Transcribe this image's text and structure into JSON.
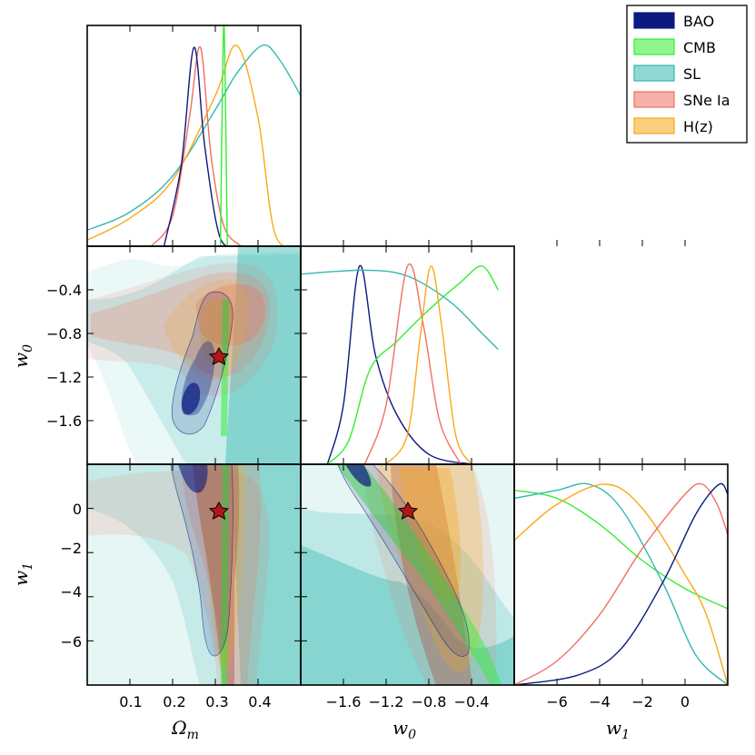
{
  "chart_data": {
    "type": "corner",
    "parameters": [
      {
        "label": "Ω",
        "subscript": "m",
        "range": [
          0.0,
          0.5
        ],
        "ticks": [
          "0.1",
          "0.2",
          "0.3",
          "0.4"
        ],
        "tick_values": [
          0.1,
          0.2,
          0.3,
          0.4
        ]
      },
      {
        "label": "w",
        "subscript": "0",
        "range": [
          -2.0,
          -0.0
        ],
        "ticks": [
          "−1.6",
          "−1.2",
          "−0.8",
          "−0.4"
        ],
        "tick_values": [
          -1.6,
          -1.2,
          -0.8,
          -0.4
        ]
      },
      {
        "label": "w",
        "subscript": "1",
        "range": [
          -8.0,
          2.0
        ],
        "ticks": [
          "−6",
          "−4",
          "−2",
          "0"
        ],
        "tick_values": [
          -6,
          -4,
          -2,
          0
        ]
      }
    ],
    "y_ticks_w0": [
      "−0.4",
      "−0.8",
      "−1.2",
      "−1.6"
    ],
    "y_ticks_w1": [
      "0",
      "−2",
      "−4",
      "−6"
    ],
    "fiducial": {
      "Omega_m": 0.31,
      "w0": -1.0,
      "w1": 0.0
    },
    "legend": [
      {
        "name": "BAO",
        "color": "#0a1a80"
      },
      {
        "name": "CMB",
        "color": "#33ee33"
      },
      {
        "name": "SL",
        "color": "#33b8b0"
      },
      {
        "name": "SNe Ia",
        "color": "#f07060"
      },
      {
        "name": "H(z)",
        "color": "#f8a818"
      }
    ],
    "marginals": {
      "Omega_m": [
        {
          "series": "SL",
          "peak_at": 0.41,
          "profile": "broad_skew_left",
          "values": [
            [
              0.0,
              0.08
            ],
            [
              0.1,
              0.17
            ],
            [
              0.2,
              0.35
            ],
            [
              0.3,
              0.68
            ],
            [
              0.35,
              0.86
            ],
            [
              0.41,
              1.0
            ],
            [
              0.45,
              0.93
            ],
            [
              0.5,
              0.75
            ]
          ]
        },
        {
          "series": "H(z)",
          "peak_at": 0.35,
          "values": [
            [
              0.0,
              0.03
            ],
            [
              0.1,
              0.14
            ],
            [
              0.2,
              0.33
            ],
            [
              0.3,
              0.75
            ],
            [
              0.35,
              1.0
            ],
            [
              0.4,
              0.64
            ],
            [
              0.44,
              0.06
            ],
            [
              0.5,
              0.0
            ]
          ]
        },
        {
          "series": "SNe Ia",
          "peak_at": 0.265,
          "values": [
            [
              0.15,
              0.0
            ],
            [
              0.2,
              0.15
            ],
            [
              0.24,
              0.65
            ],
            [
              0.265,
              0.99
            ],
            [
              0.29,
              0.45
            ],
            [
              0.32,
              0.1
            ],
            [
              0.36,
              0.0
            ]
          ]
        },
        {
          "series": "BAO",
          "peak_at": 0.25,
          "values": [
            [
              0.18,
              0.0
            ],
            [
              0.22,
              0.4
            ],
            [
              0.25,
              0.99
            ],
            [
              0.275,
              0.5
            ],
            [
              0.31,
              0.05
            ],
            [
              0.35,
              0.0
            ]
          ]
        },
        {
          "series": "CMB",
          "peak_at": 0.32,
          "values": [
            [
              0.312,
              0.0
            ],
            [
              0.318,
              0.98
            ],
            [
              0.322,
              0.98
            ],
            [
              0.328,
              0.0
            ]
          ]
        }
      ],
      "w0": [
        {
          "series": "BAO",
          "peak_at": -1.45,
          "values": [
            [
              -1.75,
              0.0
            ],
            [
              -1.6,
              0.3
            ],
            [
              -1.45,
              1.0
            ],
            [
              -1.3,
              0.55
            ],
            [
              -1.1,
              0.25
            ],
            [
              -0.8,
              0.05
            ],
            [
              -0.4,
              0.0
            ]
          ]
        },
        {
          "series": "CMB",
          "peak_at": -0.3,
          "values": [
            [
              -1.75,
              0.0
            ],
            [
              -1.55,
              0.12
            ],
            [
              -1.35,
              0.48
            ],
            [
              -1.1,
              0.62
            ],
            [
              -0.8,
              0.78
            ],
            [
              -0.5,
              0.92
            ],
            [
              -0.3,
              1.0
            ],
            [
              -0.15,
              0.88
            ]
          ]
        },
        {
          "series": "SL",
          "peak_at": -1.4,
          "values": [
            [
              -2.0,
              0.96
            ],
            [
              -1.4,
              0.98
            ],
            [
              -1.0,
              0.95
            ],
            [
              -0.6,
              0.82
            ],
            [
              -0.3,
              0.66
            ],
            [
              -0.15,
              0.58
            ]
          ]
        },
        {
          "series": "SNe Ia",
          "peak_at": -1.0,
          "values": [
            [
              -1.4,
              0.0
            ],
            [
              -1.2,
              0.3
            ],
            [
              -1.0,
              1.0
            ],
            [
              -0.85,
              0.7
            ],
            [
              -0.7,
              0.22
            ],
            [
              -0.5,
              0.0
            ]
          ]
        },
        {
          "series": "H(z)",
          "peak_at": -0.78,
          "values": [
            [
              -1.2,
              0.0
            ],
            [
              -1.0,
              0.15
            ],
            [
              -0.88,
              0.65
            ],
            [
              -0.78,
              1.0
            ],
            [
              -0.68,
              0.7
            ],
            [
              -0.55,
              0.15
            ],
            [
              -0.4,
              0.0
            ]
          ]
        }
      ],
      "w1": [
        {
          "series": "CMB",
          "values": [
            [
              -8.0,
              0.97
            ],
            [
              -6,
              0.93
            ],
            [
              -4,
              0.8
            ],
            [
              -2,
              0.62
            ],
            [
              0,
              0.48
            ],
            [
              2,
              0.38
            ]
          ]
        },
        {
          "series": "SL",
          "peak_at": -4.5,
          "values": [
            [
              -8.0,
              0.93
            ],
            [
              -6,
              0.97
            ],
            [
              -4.5,
              1.0
            ],
            [
              -3,
              0.88
            ],
            [
              -1,
              0.5
            ],
            [
              0.5,
              0.15
            ],
            [
              2,
              0.0
            ]
          ]
        },
        {
          "series": "H(z)",
          "peak_at": -3.7,
          "values": [
            [
              -8.0,
              0.72
            ],
            [
              -6,
              0.9
            ],
            [
              -3.7,
              1.0
            ],
            [
              -2,
              0.88
            ],
            [
              0,
              0.55
            ],
            [
              1,
              0.35
            ],
            [
              2,
              0.0
            ]
          ]
        },
        {
          "series": "SNe Ia",
          "peak_at": 0.8,
          "values": [
            [
              -8.0,
              0.0
            ],
            [
              -6,
              0.12
            ],
            [
              -4,
              0.35
            ],
            [
              -2,
              0.68
            ],
            [
              0,
              0.95
            ],
            [
              0.8,
              1.0
            ],
            [
              1.5,
              0.9
            ],
            [
              2,
              0.75
            ]
          ]
        },
        {
          "series": "BAO",
          "peak_at": 1.6,
          "values": [
            [
              -8.0,
              0.0
            ],
            [
              -5,
              0.05
            ],
            [
              -3,
              0.18
            ],
            [
              -1,
              0.52
            ],
            [
              0.5,
              0.85
            ],
            [
              1.6,
              1.0
            ],
            [
              2,
              0.95
            ]
          ]
        }
      ]
    }
  }
}
